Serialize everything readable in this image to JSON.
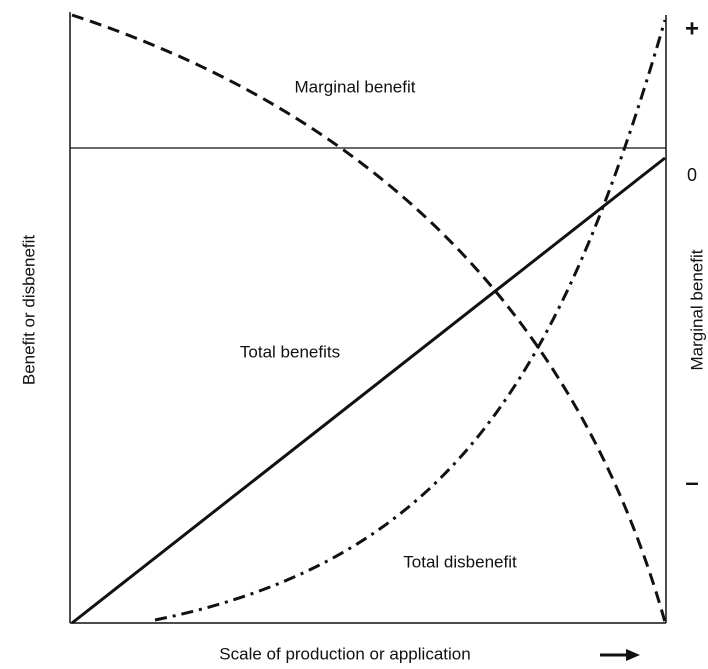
{
  "curve_labels": [
    "Marginal benefit",
    "Total benefits",
    "Total disbenefit"
  ],
  "left_axis_label": "Benefit or disbenefit",
  "right_axis_label": "Marginal benefit",
  "right_axis_marks": [
    "+",
    "0",
    "–"
  ],
  "x_axis_label": "Scale of production or application"
}
